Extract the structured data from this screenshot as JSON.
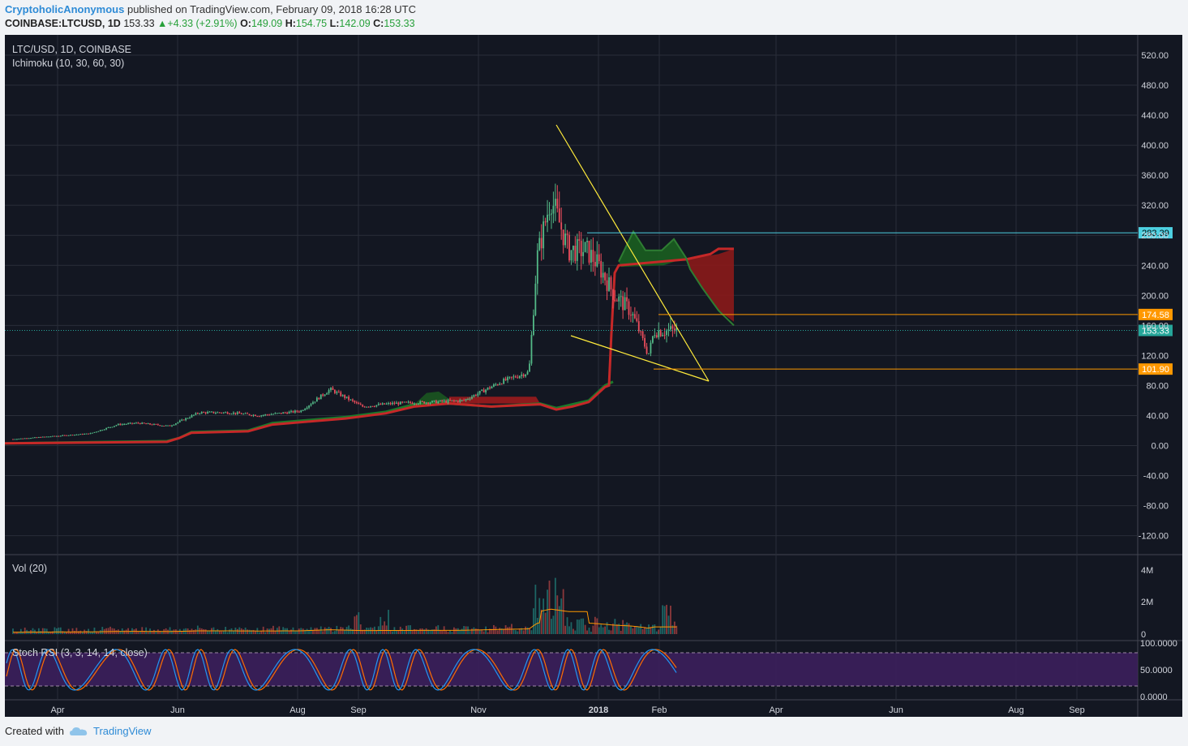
{
  "header": {
    "author": "CryptoholicAnonymous",
    "published_text": "published on TradingView.com, February 09, 2018 16:28 UTC",
    "symbol": "COINBASE:LTCUSD, 1D",
    "last": "153.33",
    "change": "+4.33 (+2.91%)",
    "o_label": "O:",
    "o": "149.09",
    "h_label": "H:",
    "h": "154.75",
    "l_label": "L:",
    "l": "142.09",
    "c_label": "C:",
    "c": "153.33"
  },
  "pane_labels": {
    "main": "LTC/USD, 1D, COINBASE",
    "ichimoku": "Ichimoku (10, 30, 60, 30)",
    "volume": "Vol (20)",
    "stoch": "Stoch RSI (3, 3, 14, 14, close)"
  },
  "price_axis": [
    "520.00",
    "480.00",
    "440.00",
    "400.00",
    "360.00",
    "320.00",
    "280.00",
    "240.00",
    "200.00",
    "160.00",
    "120.00",
    "80.00",
    "40.00",
    "0.00",
    "-40.00",
    "-80.00",
    "-120.00"
  ],
  "volume_axis": [
    "4M",
    "2M",
    "0"
  ],
  "stoch_axis": [
    "100.0000",
    "50.0000",
    "0.0000"
  ],
  "time_axis": [
    "Apr",
    "Jun",
    "Aug",
    "Sep",
    "Nov",
    "2018",
    "Feb",
    "Apr",
    "Jun",
    "Aug",
    "Sep"
  ],
  "levels": [
    {
      "label": "283.39",
      "value": 283.39,
      "color": "#4dd0e1"
    },
    {
      "label": "174.58",
      "value": 174.58,
      "color": "#ff9800"
    },
    {
      "label": "153.33",
      "value": 153.33,
      "color": "#26a69a"
    },
    {
      "label": "101.90",
      "value": 101.9,
      "color": "#ff9800"
    }
  ],
  "footer": {
    "created_with": "Created with",
    "brand": "TradingView"
  },
  "colors": {
    "bg": "#131722",
    "up": "#53b987",
    "down": "#eb4d5c",
    "trendline": "#ffeb3b",
    "grid": "#2a2e39",
    "axis_text": "#d1d4dc",
    "stoch_k": "#2196f3",
    "stoch_d": "#ff6d00",
    "stoch_band": "#3c1f5c"
  },
  "chart_data": {
    "type": "candlestick",
    "title": "LTC/USD, 1D, COINBASE",
    "ylim": [
      -140,
      540
    ],
    "price_path": [
      {
        "x": "2017-03-20",
        "y": 8
      },
      {
        "x": "2017-04-10",
        "y": 12
      },
      {
        "x": "2017-05-01",
        "y": 16
      },
      {
        "x": "2017-05-15",
        "y": 28
      },
      {
        "x": "2017-05-25",
        "y": 30
      },
      {
        "x": "2017-06-10",
        "y": 26
      },
      {
        "x": "2017-06-25",
        "y": 44
      },
      {
        "x": "2017-07-10",
        "y": 44
      },
      {
        "x": "2017-07-25",
        "y": 40
      },
      {
        "x": "2017-08-15",
        "y": 46
      },
      {
        "x": "2017-08-30",
        "y": 75
      },
      {
        "x": "2017-09-15",
        "y": 52
      },
      {
        "x": "2017-09-30",
        "y": 56
      },
      {
        "x": "2017-10-20",
        "y": 58
      },
      {
        "x": "2017-11-05",
        "y": 60
      },
      {
        "x": "2017-11-25",
        "y": 86
      },
      {
        "x": "2017-12-08",
        "y": 98
      },
      {
        "x": "2017-12-12",
        "y": 250
      },
      {
        "x": "2017-12-19",
        "y": 330
      },
      {
        "x": "2017-12-28",
        "y": 260
      },
      {
        "x": "2018-01-06",
        "y": 260
      },
      {
        "x": "2018-01-12",
        "y": 240
      },
      {
        "x": "2018-01-20",
        "y": 200
      },
      {
        "x": "2018-01-28",
        "y": 180
      },
      {
        "x": "2018-02-02",
        "y": 150
      },
      {
        "x": "2018-02-06",
        "y": 120
      },
      {
        "x": "2018-02-09",
        "y": 153
      }
    ]
  }
}
